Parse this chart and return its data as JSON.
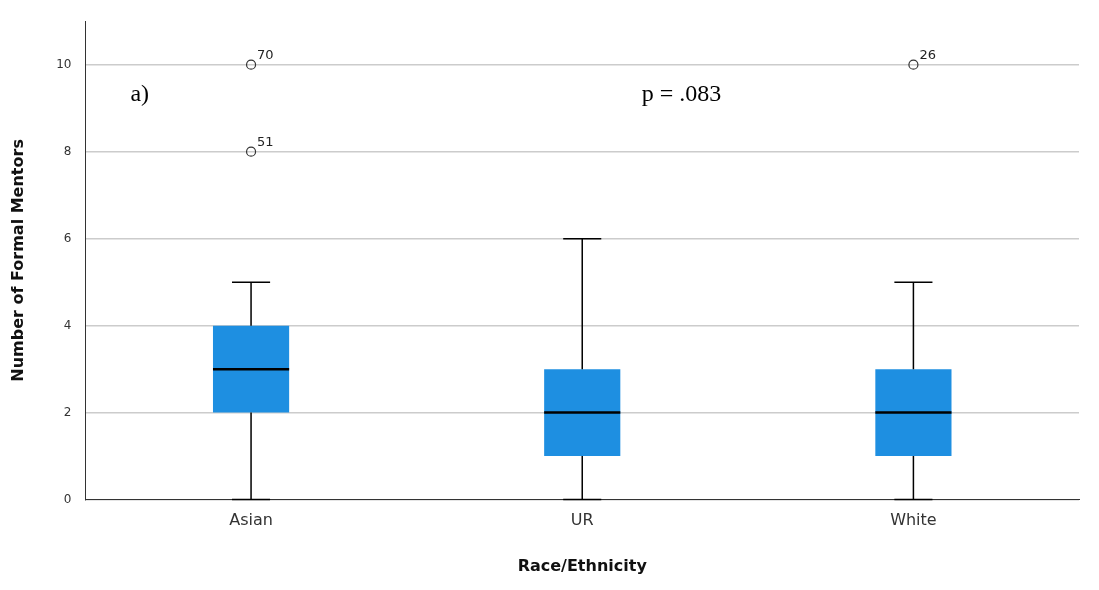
{
  "chart_data": {
    "type": "box",
    "xlabel": "Race/Ethnicity",
    "ylabel": "Number of Formal Mentors",
    "categories": [
      "Asian",
      "UR",
      "White"
    ],
    "boxes": [
      {
        "low": 0,
        "q1": 2,
        "median": 3,
        "q3": 4,
        "high": 5,
        "outliers": [
          8,
          10
        ]
      },
      {
        "low": 0,
        "q1": 1,
        "median": 2,
        "q3": 3,
        "high": 6
      },
      {
        "low": 0,
        "q1": 1,
        "median": 2,
        "q3": 3,
        "high": 5,
        "outliers": [
          10
        ]
      }
    ],
    "color": "#1e8fe1",
    "ylim": [
      0,
      11
    ],
    "yticks": [
      0,
      2,
      4,
      6,
      8,
      10
    ],
    "grid": "y",
    "legend": false,
    "marker": "circle",
    "annotations": [
      "a)",
      "p = .083",
      "51",
      "70",
      "26"
    ]
  }
}
